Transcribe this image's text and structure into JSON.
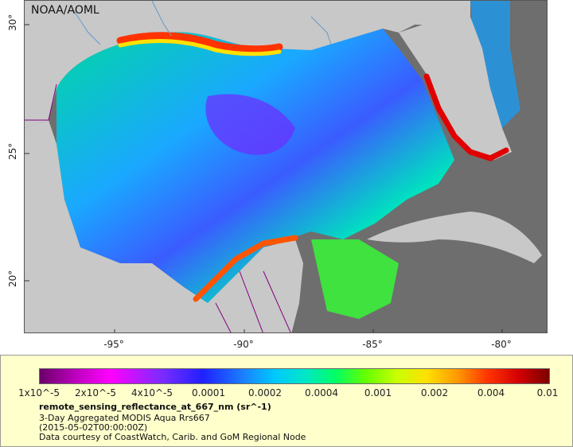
{
  "map": {
    "credit": "NOAA/AOML",
    "lat_labels": [
      "30°",
      "25°",
      "20°"
    ],
    "lon_labels": [
      "-95°",
      "-90°",
      "-85°",
      "-80°"
    ]
  },
  "legend": {
    "ticks": [
      "1x10^-5",
      "2x10^-5",
      "4x10^-5",
      "0.0001",
      "0.0002",
      "0.0004",
      "0.001",
      "0.002",
      "0.004",
      "0.01"
    ],
    "title": "remote_sensing_reflectance_at_667_nm (sr^-1)",
    "lines": [
      "3-Day Aggregated MODIS Aqua Rrs667",
      "(2015-05-02T00:00:00Z)",
      "Data courtesy of CoastWatch, Carib. and GoM Regional Node"
    ]
  },
  "colors": {
    "land": "#c8c8c8",
    "nodata": "#6e6e6e",
    "border": "#800080",
    "river": "#6699cc"
  }
}
